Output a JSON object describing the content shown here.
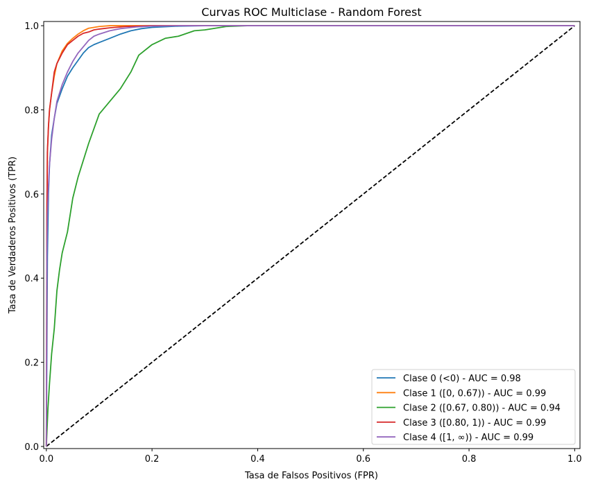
{
  "chart_data": {
    "type": "line",
    "title": "Curvas ROC Multiclase - Random Forest",
    "xlabel": "Tasa de Falsos Positivos (FPR)",
    "ylabel": "Tasa de Verdaderos Positivos (TPR)",
    "xlim": [
      -0.005,
      1.01
    ],
    "ylim": [
      -0.005,
      1.01
    ],
    "x_ticks": [
      0.0,
      0.2,
      0.4,
      0.6,
      0.8,
      1.0
    ],
    "y_ticks": [
      0.0,
      0.2,
      0.4,
      0.6,
      0.8,
      1.0
    ],
    "x_tick_labels": [
      "0.0",
      "0.2",
      "0.4",
      "0.6",
      "0.8",
      "1.0"
    ],
    "y_tick_labels": [
      "0.0",
      "0.2",
      "0.4",
      "0.6",
      "0.8",
      "1.0"
    ],
    "grid": false,
    "legend_position": "lower-right",
    "series": [
      {
        "name": "Clase 0 (<0) - AUC = 0.98",
        "color": "#1f77b4",
        "x": [
          0,
          0.002,
          0.004,
          0.006,
          0.01,
          0.015,
          0.02,
          0.03,
          0.04,
          0.05,
          0.07,
          0.08,
          0.09,
          0.1,
          0.12,
          0.14,
          0.16,
          0.18,
          0.2,
          0.25,
          0.3,
          0.4,
          0.6,
          0.8,
          1.0
        ],
        "y": [
          0,
          0.45,
          0.6,
          0.67,
          0.74,
          0.78,
          0.815,
          0.85,
          0.88,
          0.9,
          0.935,
          0.948,
          0.955,
          0.96,
          0.97,
          0.98,
          0.988,
          0.993,
          0.996,
          0.999,
          1.0,
          1.0,
          1.0,
          1.0,
          1.0
        ]
      },
      {
        "name": "Clase 1 ([0, 0.67)) - AUC = 0.99",
        "color": "#ff7f0e",
        "x": [
          0,
          0.001,
          0.002,
          0.004,
          0.006,
          0.01,
          0.015,
          0.02,
          0.03,
          0.04,
          0.05,
          0.06,
          0.07,
          0.08,
          0.1,
          0.12,
          0.15,
          0.2,
          0.3,
          0.5,
          1.0
        ],
        "y": [
          0,
          0.55,
          0.7,
          0.76,
          0.8,
          0.84,
          0.88,
          0.91,
          0.94,
          0.958,
          0.97,
          0.98,
          0.988,
          0.994,
          0.998,
          1.0,
          1.0,
          1.0,
          1.0,
          1.0,
          1.0
        ]
      },
      {
        "name": "Clase 2 ([0.67, 0.80)) - AUC = 0.94",
        "color": "#2ca02c",
        "x": [
          0,
          0.003,
          0.006,
          0.01,
          0.015,
          0.02,
          0.025,
          0.03,
          0.04,
          0.05,
          0.06,
          0.08,
          0.1,
          0.12,
          0.14,
          0.16,
          0.175,
          0.2,
          0.225,
          0.25,
          0.28,
          0.3,
          0.34,
          0.38,
          0.4,
          0.6,
          1.0
        ],
        "y": [
          0,
          0.09,
          0.15,
          0.22,
          0.28,
          0.37,
          0.42,
          0.46,
          0.51,
          0.59,
          0.64,
          0.72,
          0.79,
          0.82,
          0.85,
          0.89,
          0.93,
          0.955,
          0.97,
          0.975,
          0.988,
          0.99,
          0.998,
          1.0,
          1.0,
          1.0,
          1.0
        ]
      },
      {
        "name": "Clase 3 ([0.80, 1)) - AUC = 0.99",
        "color": "#d62728",
        "x": [
          0,
          0.001,
          0.002,
          0.004,
          0.006,
          0.01,
          0.015,
          0.02,
          0.03,
          0.04,
          0.05,
          0.06,
          0.07,
          0.08,
          0.09,
          0.1,
          0.12,
          0.15,
          0.2,
          0.3,
          0.5,
          1.0
        ],
        "y": [
          0,
          0.55,
          0.7,
          0.76,
          0.8,
          0.84,
          0.89,
          0.91,
          0.935,
          0.955,
          0.965,
          0.975,
          0.982,
          0.985,
          0.99,
          0.992,
          0.995,
          0.998,
          1.0,
          1.0,
          1.0,
          1.0
        ]
      },
      {
        "name": "Clase 4 ([1, ∞)) - AUC = 0.99",
        "color": "#9467bd",
        "x": [
          0,
          0.001,
          0.002,
          0.004,
          0.006,
          0.01,
          0.015,
          0.02,
          0.03,
          0.04,
          0.05,
          0.06,
          0.07,
          0.08,
          0.09,
          0.1,
          0.12,
          0.14,
          0.17,
          0.2,
          0.25,
          0.3,
          0.5,
          1.0
        ],
        "y": [
          0,
          0.45,
          0.55,
          0.62,
          0.67,
          0.73,
          0.78,
          0.82,
          0.86,
          0.89,
          0.915,
          0.935,
          0.95,
          0.965,
          0.975,
          0.98,
          0.988,
          0.993,
          0.997,
          0.999,
          1.0,
          1.0,
          1.0,
          1.0
        ]
      }
    ],
    "reference_line": {
      "style": "dashed",
      "color": "#000000",
      "x": [
        0,
        1
      ],
      "y": [
        0,
        1
      ]
    }
  }
}
